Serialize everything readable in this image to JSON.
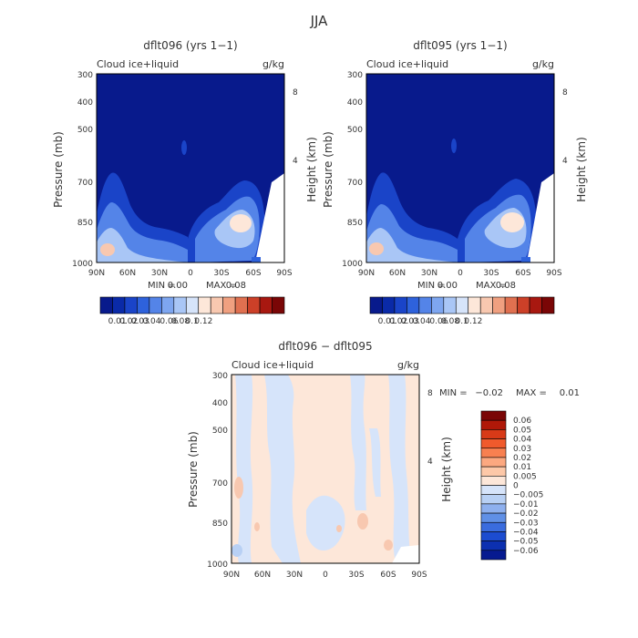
{
  "figure": {
    "title": "JJA"
  },
  "colors": {
    "abs_scale": [
      "#081a8c",
      "#0a2aa8",
      "#1a44c8",
      "#2e62dc",
      "#5484e8",
      "#7ea6f0",
      "#a9c6f6",
      "#d6e4fa",
      "#fde7d9",
      "#f8c8b0",
      "#f0a080",
      "#e07050",
      "#cc4028",
      "#a81810",
      "#7a0606"
    ],
    "diff_scale": [
      "#7a0606",
      "#b01808",
      "#d83a18",
      "#f05a2c",
      "#f88050",
      "#fca880",
      "#fdc8a8",
      "#fde7d9",
      "#d6e4fa",
      "#b8d0f4",
      "#8eb0ee",
      "#6090e6",
      "#3a6cde",
      "#1c4cd0",
      "#0c30b0",
      "#061a90"
    ]
  },
  "chart_data": [
    {
      "type": "heatmap",
      "title": "dflt096 (yrs 1−1)",
      "subtitle_left": "Cloud ice+liquid",
      "subtitle_right": "g/kg",
      "ylabel": "Pressure (mb)",
      "y2label": "Height (km)",
      "x_ticks": [
        "90N",
        "60N",
        "30N",
        "0",
        "30S",
        "60S",
        "90S"
      ],
      "y_ticks": [
        "300",
        "400",
        "500",
        "700",
        "850",
        "1000"
      ],
      "y2_ticks": [
        "8",
        "4"
      ],
      "stats": {
        "min_label": "MIN =",
        "min": "0.00",
        "max_label": "MAX =",
        "max": "0.08"
      },
      "colorbar_labels": [
        "0.01",
        "0.02",
        "0.03",
        "0.04",
        "0.06",
        "0.08",
        "0.1",
        "0.12"
      ],
      "background": "#081a8c"
    },
    {
      "type": "heatmap",
      "title": "dflt095 (yrs 1−1)",
      "subtitle_left": "Cloud ice+liquid",
      "subtitle_right": "g/kg",
      "ylabel": "Pressure (mb)",
      "y2label": "Height (km)",
      "x_ticks": [
        "90N",
        "60N",
        "30N",
        "0",
        "30S",
        "60S",
        "90S"
      ],
      "y_ticks": [
        "300",
        "400",
        "500",
        "700",
        "850",
        "1000"
      ],
      "y2_ticks": [
        "8",
        "4"
      ],
      "stats": {
        "min_label": "MIN =",
        "min": "0.00",
        "max_label": "MAX =",
        "max": "0.08"
      },
      "colorbar_labels": [
        "0.01",
        "0.02",
        "0.03",
        "0.04",
        "0.06",
        "0.08",
        "0.1",
        "0.12"
      ],
      "background": "#081a8c"
    },
    {
      "type": "heatmap",
      "title": "dflt096 − dflt095",
      "subtitle_left": "Cloud ice+liquid",
      "subtitle_right": "g/kg",
      "ylabel": "Pressure (mb)",
      "y2label": "Height (km)",
      "x_ticks": [
        "90N",
        "60N",
        "30N",
        "0",
        "30S",
        "60S",
        "90S"
      ],
      "y_ticks": [
        "300",
        "400",
        "500",
        "700",
        "850",
        "1000"
      ],
      "y2_ticks": [
        "8",
        "4"
      ],
      "stats": {
        "min_label": "MIN =",
        "min": "−0.02",
        "max_label": "MAX =",
        "max": "0.01"
      },
      "colorbar_labels": [
        "0.06",
        "0.05",
        "0.04",
        "0.03",
        "0.02",
        "0.01",
        "0.005",
        "0",
        "−0.005",
        "−0.01",
        "−0.02",
        "−0.03",
        "−0.04",
        "−0.05",
        "−0.06"
      ],
      "background": "#fde7d9"
    }
  ]
}
